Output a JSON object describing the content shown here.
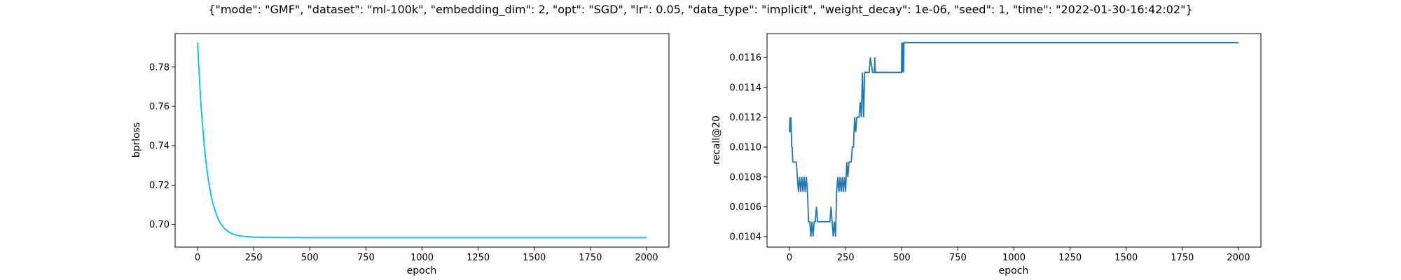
{
  "figure": {
    "suptitle": "{\"mode\": \"GMF\", \"dataset\": \"ml-100k\", \"embedding_dim\": 2, \"opt\": \"SGD\", \"lr\": 0.05, \"data_type\": \"implicit\", \"weight_decay\": 1e-06, \"seed\": 1, \"time\": \"2022-01-30-16:42:02\"}"
  },
  "chart_data": [
    {
      "type": "line",
      "xlabel": "epoch",
      "ylabel": "bprloss",
      "xlim": [
        -100,
        2100
      ],
      "ylim": [
        0.6885,
        0.797
      ],
      "xticks": [
        0,
        250,
        500,
        750,
        1000,
        1250,
        1500,
        1750,
        2000
      ],
      "yticks": [
        0.7,
        0.72,
        0.74,
        0.76,
        0.78
      ],
      "ytick_decimals": 2,
      "grid": false,
      "color": "#00bfff",
      "x": [
        0,
        5,
        10,
        15,
        20,
        30,
        40,
        50,
        60,
        70,
        80,
        90,
        100,
        120,
        140,
        160,
        180,
        200,
        250,
        300,
        500,
        1000,
        1500,
        2000
      ],
      "y": [
        0.7925,
        0.781,
        0.7706,
        0.7614,
        0.7533,
        0.7397,
        0.7292,
        0.7211,
        0.7148,
        0.7099,
        0.7062,
        0.7033,
        0.701,
        0.6979,
        0.6961,
        0.695,
        0.6944,
        0.694,
        0.6936,
        0.6934,
        0.6933,
        0.6933,
        0.6933,
        0.6933
      ]
    },
    {
      "type": "line",
      "xlabel": "epoch",
      "ylabel": "recall@20",
      "xlim": [
        -100,
        2100
      ],
      "ylim": [
        0.01033,
        0.01176
      ],
      "xticks": [
        0,
        250,
        500,
        750,
        1000,
        1250,
        1500,
        1750,
        2000
      ],
      "yticks": [
        0.0104,
        0.0106,
        0.0108,
        0.011,
        0.0112,
        0.0114,
        0.0116
      ],
      "ytick_decimals": 4,
      "grid": false,
      "color": "#1f77b4",
      "x": [
        0,
        2,
        4,
        6,
        8,
        10,
        12,
        15,
        20,
        30,
        40,
        45,
        50,
        55,
        60,
        65,
        70,
        75,
        80,
        85,
        90,
        95,
        100,
        105,
        110,
        115,
        120,
        125,
        130,
        140,
        150,
        160,
        170,
        180,
        185,
        190,
        195,
        200,
        205,
        210,
        215,
        220,
        225,
        230,
        235,
        240,
        245,
        250,
        255,
        260,
        265,
        270,
        275,
        280,
        285,
        290,
        295,
        300,
        305,
        310,
        315,
        320,
        325,
        330,
        335,
        340,
        345,
        350,
        355,
        360,
        370,
        378,
        380,
        382,
        390,
        400,
        450,
        499,
        500,
        502,
        505,
        508,
        510,
        600,
        800,
        1000,
        1500,
        2000
      ],
      "y": [
        0.0111,
        0.0112,
        0.0111,
        0.0112,
        0.0111,
        0.011,
        0.011,
        0.0109,
        0.0109,
        0.0109,
        0.0107,
        0.0108,
        0.0107,
        0.0108,
        0.0107,
        0.0108,
        0.0107,
        0.0108,
        0.0107,
        0.0105,
        0.0105,
        0.0104,
        0.0105,
        0.0104,
        0.0105,
        0.0105,
        0.0106,
        0.0105,
        0.0105,
        0.0105,
        0.0105,
        0.0105,
        0.0105,
        0.0105,
        0.0106,
        0.0105,
        0.0104,
        0.0105,
        0.0104,
        0.0107,
        0.0108,
        0.0107,
        0.0108,
        0.0107,
        0.0108,
        0.0107,
        0.0108,
        0.0107,
        0.0109,
        0.0108,
        0.0109,
        0.0109,
        0.0109,
        0.011,
        0.011,
        0.0112,
        0.0111,
        0.0112,
        0.0112,
        0.0112,
        0.0113,
        0.0112,
        0.0115,
        0.0112,
        0.0115,
        0.0115,
        0.0115,
        0.0115,
        0.0115,
        0.0116,
        0.0115,
        0.0115,
        0.0116,
        0.0115,
        0.0115,
        0.0115,
        0.0115,
        0.0115,
        0.0117,
        0.0115,
        0.0117,
        0.0115,
        0.0117,
        0.0117,
        0.0117,
        0.0117,
        0.0117,
        0.0117
      ]
    }
  ]
}
